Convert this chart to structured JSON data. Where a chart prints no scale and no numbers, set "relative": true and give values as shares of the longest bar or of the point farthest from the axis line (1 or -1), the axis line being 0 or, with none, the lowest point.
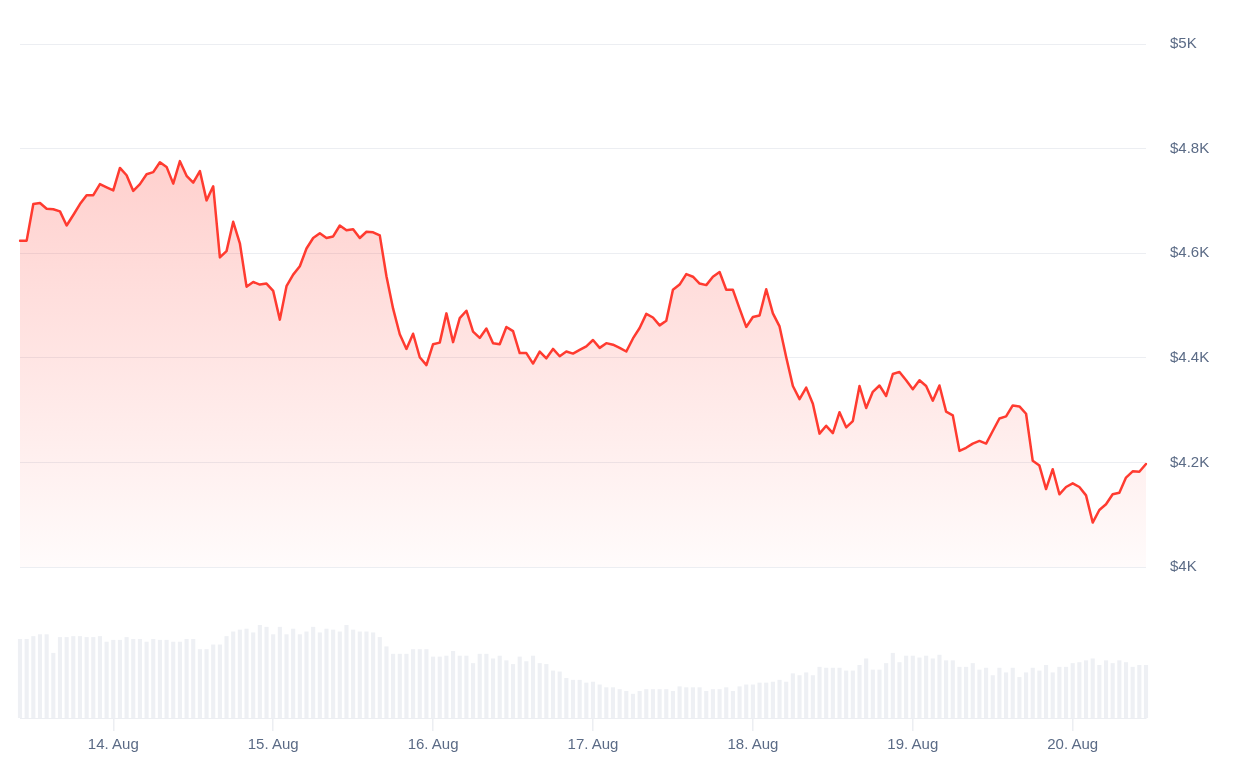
{
  "chart_data": [
    {
      "type": "area",
      "color": "#ff3b30",
      "marker": "none",
      "grid": "y",
      "tick_labels": "y",
      "ylim": [
        4000,
        5000
      ],
      "yticks": [
        {
          "value": 4000,
          "label": "$4K"
        },
        {
          "value": 4200,
          "label": "$4.2K"
        },
        {
          "value": 4400,
          "label": "$4.4K"
        },
        {
          "value": 4600,
          "label": "$4.6K"
        },
        {
          "value": 4800,
          "label": "$4.8K"
        },
        {
          "value": 5000,
          "label": "$5K"
        }
      ],
      "categories": [
        null,
        null,
        null,
        null,
        null,
        null,
        null,
        null,
        null,
        null,
        null,
        null,
        null,
        null,
        null,
        null,
        null,
        null,
        null,
        null,
        null,
        null,
        null,
        null,
        null,
        null,
        null,
        null,
        null,
        null,
        null,
        null,
        null,
        null,
        null,
        null,
        null,
        null,
        null,
        null,
        null,
        null,
        null,
        null,
        null,
        null,
        null,
        null,
        null,
        null,
        null,
        null,
        null,
        null,
        null,
        null,
        null,
        null,
        null,
        null,
        null,
        null,
        null,
        null,
        null,
        null,
        null,
        null,
        null,
        null,
        null,
        null,
        null,
        null,
        null,
        null,
        null,
        null,
        null,
        null,
        null,
        null,
        null,
        null,
        null,
        null,
        null,
        null,
        null,
        null,
        null,
        null,
        null,
        null,
        null,
        null,
        null,
        null,
        null,
        null,
        null,
        null,
        null,
        null,
        null,
        null,
        null,
        null,
        null,
        null,
        null,
        null,
        null,
        null,
        null,
        null,
        null,
        null,
        null,
        null,
        null,
        null,
        null,
        null,
        null,
        null,
        null,
        null,
        null,
        null,
        null,
        null,
        null,
        null,
        null,
        null,
        null,
        null,
        null,
        null,
        null,
        null,
        null,
        null,
        null,
        null,
        null,
        null,
        null,
        null,
        null,
        null,
        null,
        null,
        null,
        null,
        null,
        null,
        null,
        null,
        null,
        null,
        null,
        null,
        null,
        null,
        null,
        null,
        null,
        null
      ],
      "values": [
        4624,
        4624,
        4694,
        4696,
        4685,
        4684,
        4680,
        4653,
        4673,
        4694,
        4711,
        4711,
        4732,
        4726,
        4720,
        4763,
        4749,
        4719,
        4732,
        4751,
        4755,
        4774,
        4765,
        4733,
        4776,
        4748,
        4735,
        4757,
        4701,
        4728,
        4592,
        4604,
        4660,
        4619,
        4536,
        4545,
        4540,
        4542,
        4528,
        4473,
        4537,
        4559,
        4575,
        4609,
        4629,
        4638,
        4629,
        4632,
        4653,
        4644,
        4646,
        4629,
        4641,
        4640,
        4634,
        4556,
        4494,
        4445,
        4417,
        4446,
        4401,
        4386,
        4426,
        4429,
        4485,
        4430,
        4476,
        4490,
        4450,
        4438,
        4456,
        4428,
        4426,
        4459,
        4451,
        4409,
        4409,
        4389,
        4412,
        4399,
        4417,
        4403,
        4412,
        4408,
        4415,
        4422,
        4434,
        4419,
        4428,
        4425,
        4419,
        4412,
        4437,
        4457,
        4484,
        4477,
        4462,
        4471,
        4530,
        4540,
        4560,
        4555,
        4542,
        4539,
        4555,
        4564,
        4530,
        4530,
        4494,
        4459,
        4478,
        4481,
        4531,
        4485,
        4460,
        4401,
        4346,
        4321,
        4343,
        4312,
        4255,
        4270,
        4256,
        4296,
        4267,
        4279,
        4346,
        4304,
        4335,
        4347,
        4327,
        4369,
        4373,
        4357,
        4340,
        4357,
        4346,
        4318,
        4347,
        4297,
        4290,
        4222,
        4228,
        4236,
        4241,
        4236,
        4260,
        4284,
        4288,
        4309,
        4307,
        4293,
        4203,
        4194,
        4149,
        4187,
        4139,
        4153,
        4160,
        4153,
        4137,
        4085,
        4109,
        4120,
        4139,
        4142,
        4171,
        4183,
        4182,
        4197
      ]
    },
    {
      "type": "bar",
      "color": "#eef0f4",
      "relative": true,
      "tick_labels": "x",
      "categories": [
        null,
        null,
        null,
        null,
        null,
        null,
        null,
        null,
        null,
        null,
        null,
        null,
        null,
        null,
        "14. Aug",
        null,
        null,
        null,
        null,
        null,
        null,
        null,
        null,
        null,
        null,
        null,
        null,
        null,
        null,
        null,
        null,
        null,
        null,
        null,
        null,
        null,
        null,
        null,
        "15. Aug",
        null,
        null,
        null,
        null,
        null,
        null,
        null,
        null,
        null,
        null,
        null,
        null,
        null,
        null,
        null,
        null,
        null,
        null,
        null,
        null,
        null,
        null,
        null,
        "16. Aug",
        null,
        null,
        null,
        null,
        null,
        null,
        null,
        null,
        null,
        null,
        null,
        null,
        null,
        null,
        null,
        null,
        null,
        null,
        null,
        null,
        null,
        null,
        null,
        "17. Aug",
        null,
        null,
        null,
        null,
        null,
        null,
        null,
        null,
        null,
        null,
        null,
        null,
        null,
        null,
        null,
        null,
        null,
        null,
        null,
        null,
        null,
        null,
        null,
        "18. Aug",
        null,
        null,
        null,
        null,
        null,
        null,
        null,
        null,
        null,
        null,
        null,
        null,
        null,
        null,
        null,
        null,
        null,
        null,
        null,
        null,
        null,
        null,
        null,
        "19. Aug",
        null,
        null,
        null,
        null,
        null,
        null,
        null,
        null,
        null,
        null,
        null,
        null,
        null,
        null,
        null,
        null,
        null,
        null,
        null,
        null,
        null,
        null,
        null,
        "20. Aug",
        null,
        null,
        null,
        null,
        null,
        null,
        null,
        null,
        null,
        null,
        null
      ],
      "values": [
        0.85,
        0.85,
        0.88,
        0.9,
        0.9,
        0.7,
        0.87,
        0.87,
        0.88,
        0.88,
        0.87,
        0.87,
        0.88,
        0.82,
        0.84,
        0.84,
        0.87,
        0.85,
        0.85,
        0.82,
        0.85,
        0.84,
        0.84,
        0.82,
        0.82,
        0.85,
        0.85,
        0.74,
        0.74,
        0.79,
        0.79,
        0.88,
        0.93,
        0.95,
        0.96,
        0.92,
        1,
        0.98,
        0.9,
        0.98,
        0.9,
        0.96,
        0.9,
        0.93,
        0.98,
        0.92,
        0.96,
        0.95,
        0.93,
        1,
        0.95,
        0.93,
        0.93,
        0.92,
        0.87,
        0.77,
        0.69,
        0.69,
        0.69,
        0.74,
        0.74,
        0.74,
        0.66,
        0.66,
        0.67,
        0.72,
        0.67,
        0.67,
        0.59,
        0.69,
        0.69,
        0.64,
        0.67,
        0.62,
        0.58,
        0.66,
        0.61,
        0.67,
        0.59,
        0.58,
        0.51,
        0.5,
        0.43,
        0.41,
        0.41,
        0.38,
        0.39,
        0.36,
        0.33,
        0.33,
        0.31,
        0.29,
        0.26,
        0.29,
        0.31,
        0.31,
        0.31,
        0.31,
        0.29,
        0.34,
        0.33,
        0.33,
        0.33,
        0.29,
        0.31,
        0.31,
        0.33,
        0.29,
        0.34,
        0.36,
        0.36,
        0.38,
        0.38,
        0.39,
        0.41,
        0.39,
        0.48,
        0.46,
        0.49,
        0.46,
        0.55,
        0.54,
        0.54,
        0.54,
        0.51,
        0.51,
        0.57,
        0.64,
        0.52,
        0.52,
        0.59,
        0.7,
        0.6,
        0.67,
        0.67,
        0.65,
        0.67,
        0.64,
        0.68,
        0.62,
        0.62,
        0.55,
        0.55,
        0.59,
        0.52,
        0.54,
        0.46,
        0.54,
        0.49,
        0.54,
        0.44,
        0.49,
        0.54,
        0.51,
        0.57,
        0.49,
        0.55,
        0.55,
        0.59,
        0.6,
        0.62,
        0.64,
        0.57,
        0.62,
        0.59,
        0.62,
        0.6,
        0.55,
        0.57,
        0.57
      ]
    }
  ]
}
